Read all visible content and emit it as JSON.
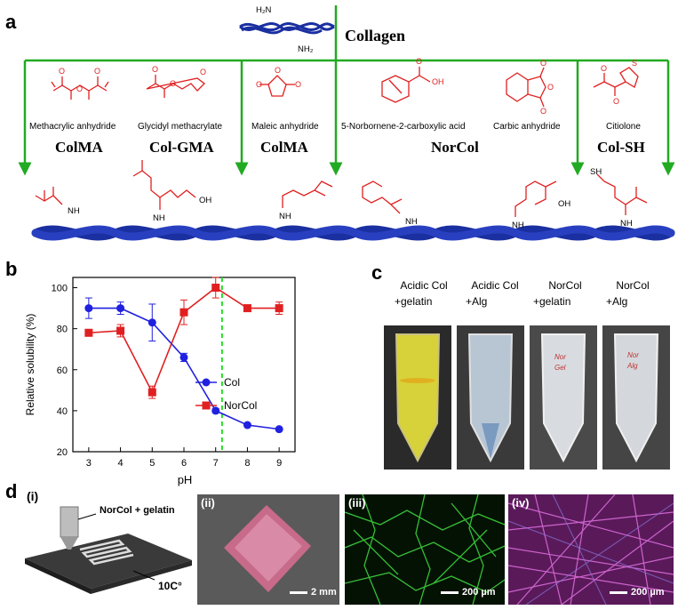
{
  "panel_a": {
    "letter": "a",
    "collagen_label": "Collagen",
    "collagen_h2n_top": "H₂N",
    "collagen_nh2_bottom": "NH₂",
    "reagents": [
      {
        "name": "Methacrylic anhydride"
      },
      {
        "name": "Glycidyl methacrylate"
      },
      {
        "name": "Maleic anhydride"
      },
      {
        "name": "5-Norbornene-2-carboxylic acid"
      },
      {
        "name": "Carbic anhydride"
      },
      {
        "name": "Citiolone"
      }
    ],
    "products": [
      "ColMA",
      "Col-GMA",
      "ColMA",
      "NorCol",
      "Col-SH"
    ],
    "product_groups": {
      "nh": "NH",
      "oh": "OH",
      "o": "O",
      "s": "S",
      "sh": "SH",
      "h": "H",
      "n": "N"
    },
    "colors": {
      "arrow": "#22aa22",
      "chem": "#e02020",
      "helix": "#1a2fa0"
    }
  },
  "panel_b": {
    "letter": "b",
    "chart_data": {
      "type": "line",
      "xlabel": "pH",
      "ylabel": "Relative solubility (%)",
      "x": [
        3,
        4,
        5,
        6,
        7,
        8,
        9
      ],
      "xlim": [
        2.5,
        9.5
      ],
      "ylim": [
        20,
        105
      ],
      "xticks": [
        3,
        4,
        5,
        6,
        7,
        8,
        9
      ],
      "yticks": [
        20,
        40,
        60,
        80,
        100
      ],
      "legend_position": "right",
      "marker_line_x": 7.2,
      "series": [
        {
          "name": "Col",
          "color": "#2020e0",
          "values": [
            90,
            90,
            83,
            66,
            40,
            33,
            31
          ],
          "errors": [
            5,
            3,
            9,
            2,
            1,
            0.5,
            0.5
          ]
        },
        {
          "name": "NorCol",
          "color": "#e02020",
          "values": [
            78,
            79,
            49,
            88,
            100,
            90,
            90
          ],
          "errors": [
            1.5,
            3,
            3,
            6,
            5,
            1,
            3
          ]
        }
      ]
    }
  },
  "panel_c": {
    "letter": "c",
    "tubes": [
      {
        "line1": "Acidic Col",
        "line2": "+gelatin"
      },
      {
        "line1": "Acidic Col",
        "line2": "+Alg"
      },
      {
        "line1": "NorCol",
        "line2": "+gelatin"
      },
      {
        "line1": "NorCol",
        "line2": "+Alg"
      }
    ],
    "tube_writing": [
      {
        "line1": "Nor",
        "line2": "Gel"
      },
      {
        "line1": "Nor",
        "line2": "Alg"
      }
    ]
  },
  "panel_d": {
    "letter": "d",
    "sub_i": "(i)",
    "sub_ii": "(ii)",
    "sub_iii": "(iii)",
    "sub_iv": "(iv)",
    "ink_label": "NorCol + gelatin",
    "temp_label": "10C°",
    "scale_ii": "2 mm",
    "scale_iii": "200 µm",
    "scale_iv": "200 µm"
  }
}
